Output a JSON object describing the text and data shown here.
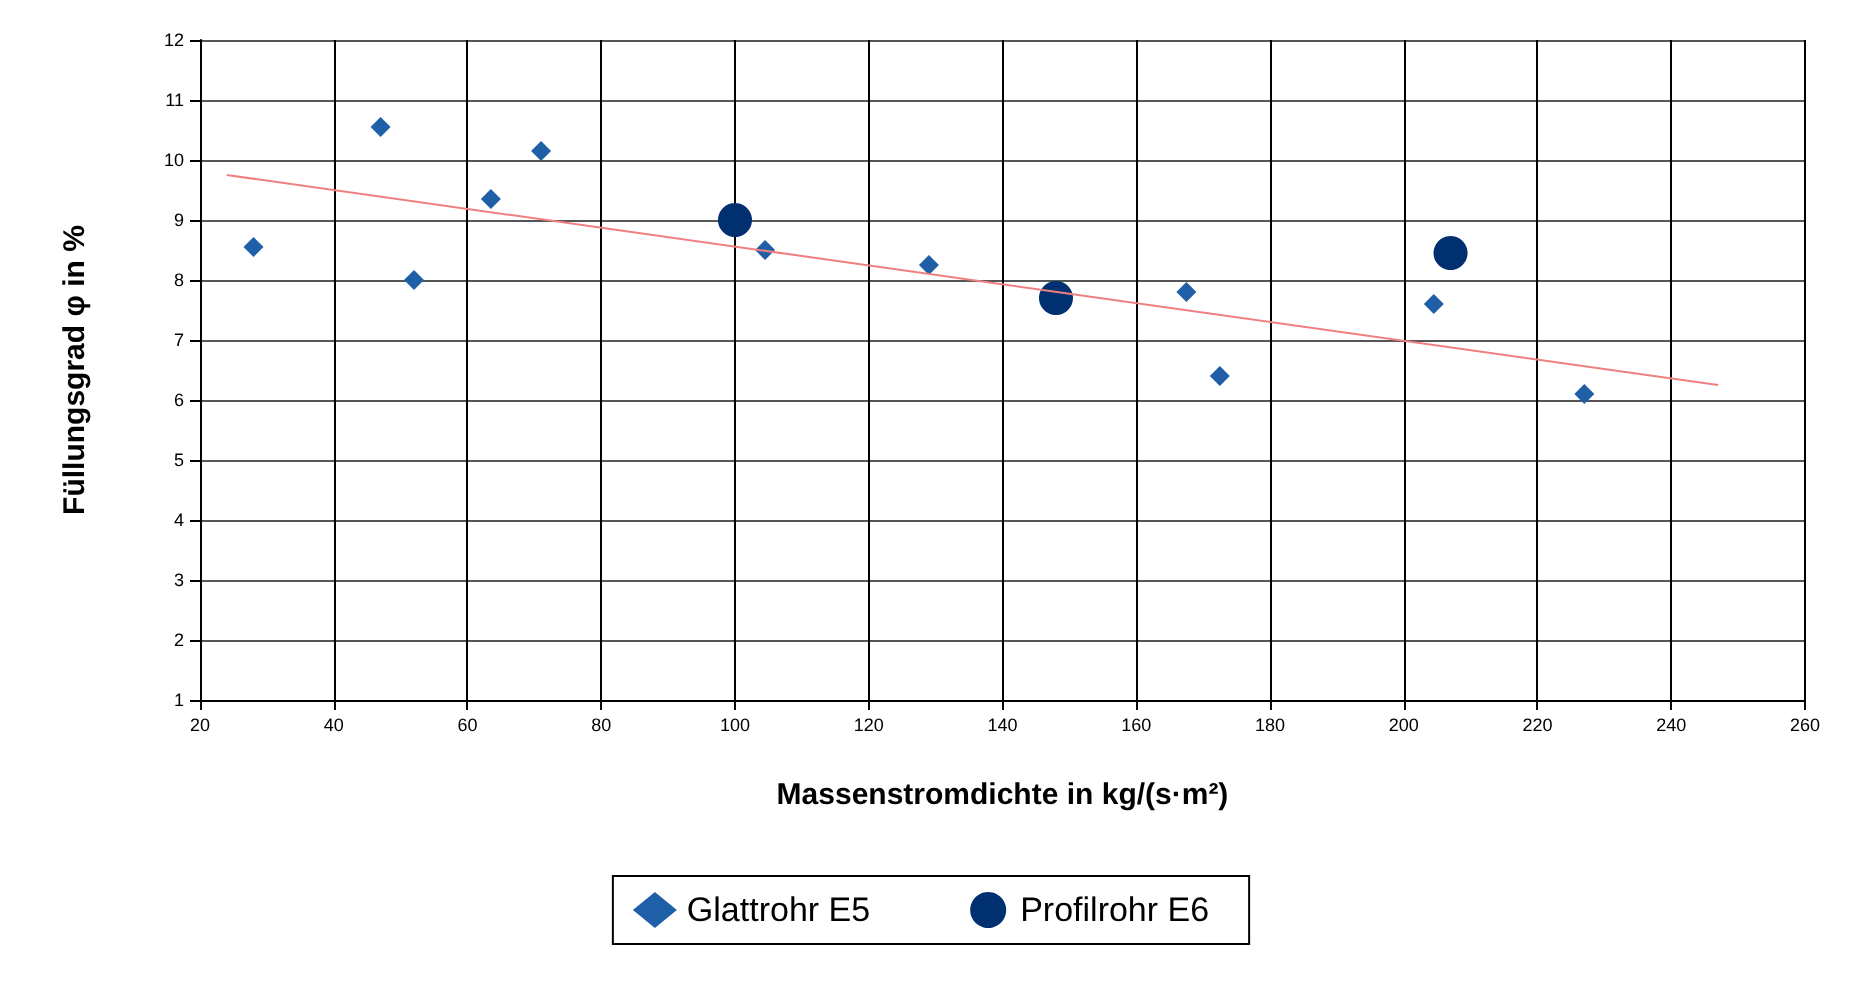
{
  "chart_data": {
    "type": "scatter",
    "xlabel": "Massenstromdichte in kg/(s·m²)",
    "ylabel": "Füllungsgrad φ in %",
    "xlim": [
      20,
      260
    ],
    "xticks": [
      20,
      40,
      60,
      80,
      100,
      120,
      140,
      160,
      180,
      200,
      220,
      240,
      260
    ],
    "ylim": [
      1,
      12
    ],
    "yticks": [
      1,
      2,
      3,
      4,
      5,
      6,
      7,
      8,
      9,
      10,
      11,
      12
    ],
    "grid": true,
    "legend": "bottom",
    "series": [
      {
        "name": "Glattrohr E5",
        "color": "#1f5fa8",
        "marker": "diamond",
        "x": [
          28,
          47,
          52,
          63.5,
          71,
          104.5,
          129,
          167.5,
          172.5,
          204.5,
          227
        ],
        "values": [
          8.55,
          10.55,
          8.0,
          9.35,
          10.15,
          8.5,
          8.25,
          7.8,
          6.4,
          7.6,
          6.1
        ]
      },
      {
        "name": "Profilrohr E6",
        "color": "#003070",
        "marker": "circle",
        "x": [
          100,
          148,
          207
        ],
        "values": [
          9.0,
          7.7,
          8.45
        ]
      },
      {
        "type": "line",
        "color": "#f08080",
        "marker": "none",
        "x": [
          24,
          247
        ],
        "values": [
          9.75,
          6.25
        ]
      }
    ]
  }
}
